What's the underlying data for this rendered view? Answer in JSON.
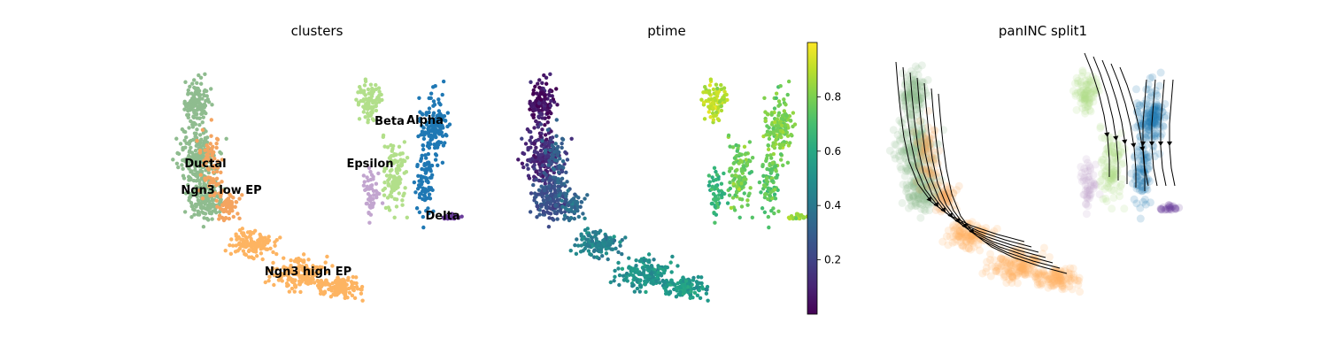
{
  "chart_data": [
    {
      "type": "scatter",
      "title": "clusters",
      "xlabel": "",
      "ylabel": "",
      "legend": "on data",
      "grid": false,
      "categories": [
        {
          "name": "Ductal",
          "color": "#8fbc8f",
          "label_pos": [
            2.2,
            6.9
          ]
        },
        {
          "name": "Ngn3 low EP",
          "color": "#f4a460",
          "label_pos": [
            2.6,
            5.8
          ]
        },
        {
          "name": "Ngn3 high EP",
          "color": "#fdb462",
          "label_pos": [
            7.7,
            1.3
          ]
        },
        {
          "name": "Epsilon",
          "color": "#c2a5cf",
          "label_pos": [
            11.2,
            6.9
          ]
        },
        {
          "name": "Beta",
          "color": "#b2df8a",
          "label_pos": [
            12.1,
            8.5
          ]
        },
        {
          "name": "Alpha",
          "color": "#1f78b4",
          "label_pos": [
            13.5,
            8.55
          ]
        },
        {
          "name": "Delta",
          "color": "#6a3d9a",
          "label_pos": [
            14.2,
            4.0
          ]
        }
      ]
    },
    {
      "type": "scatter",
      "title": "ptime",
      "xlabel": "",
      "ylabel": "",
      "grid": false,
      "colorbar": {
        "ticks": [
          "0.2",
          "0.4",
          "0.6",
          "0.8"
        ],
        "range": [
          0.0,
          1.0
        ],
        "colormap": "viridis"
      }
    },
    {
      "type": "streamplot",
      "title": "panINC split1",
      "xlabel": "",
      "ylabel": "",
      "grid": false,
      "stream_color": "#000000"
    }
  ]
}
